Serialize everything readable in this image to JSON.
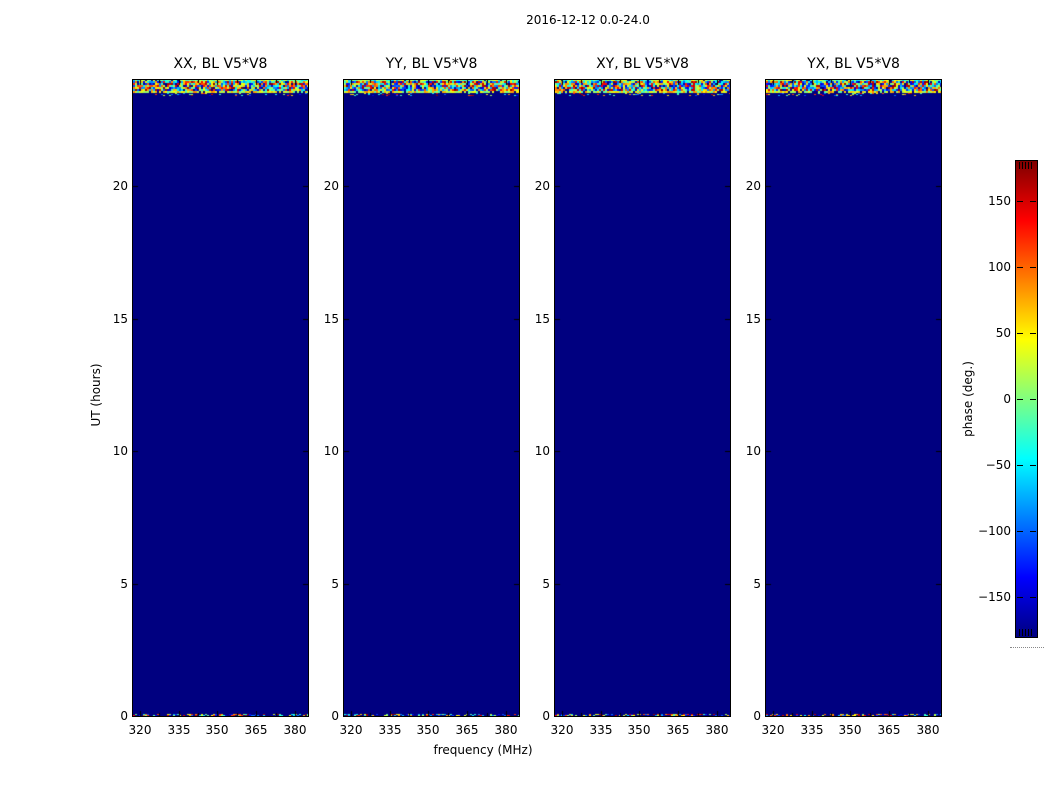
{
  "figure": {
    "title": "2016-12-12 0.0-24.0"
  },
  "panels": [
    {
      "title": "XX, BL V5*V8"
    },
    {
      "title": "YY, BL V5*V8"
    },
    {
      "title": "XY, BL V5*V8"
    },
    {
      "title": "YX, BL V5*V8"
    }
  ],
  "axes": {
    "xlabel": "frequency (MHz)",
    "ylabel": "UT (hours)",
    "x_tick_labels": [
      "320",
      "335",
      "350",
      "365",
      "380"
    ],
    "y_tick_labels": [
      "0",
      "5",
      "10",
      "15",
      "20"
    ]
  },
  "colorbar": {
    "label": "phase (deg.)",
    "tick_labels": [
      "150",
      "100",
      "50",
      "0",
      "−50",
      "−100",
      "−150"
    ]
  },
  "colors": {
    "background": "#ffffff",
    "panel_fill": "#000080",
    "spine": "#000000",
    "colormap_jet_stops": [
      "#800000",
      "#ff0000",
      "#ff8000",
      "#ffff00",
      "#80ff80",
      "#00ffff",
      "#0080ff",
      "#0000ff",
      "#000080"
    ]
  },
  "chart_data": {
    "type": "heatmap",
    "title": "2016-12-12 0.0-24.0",
    "subplots": [
      {
        "title": "XX, BL V5*V8"
      },
      {
        "title": "YY, BL V5*V8"
      },
      {
        "title": "XY, BL V5*V8"
      },
      {
        "title": "YX, BL V5*V8"
      }
    ],
    "xlabel": "frequency (MHz)",
    "ylabel": "UT (hours)",
    "x_ticks": [
      320,
      335,
      350,
      365,
      380
    ],
    "y_ticks": [
      0,
      5,
      10,
      15,
      20
    ],
    "xlim": [
      318,
      385
    ],
    "ylim": [
      0,
      24
    ],
    "colorbar": {
      "label": "phase (deg.)",
      "ticks": [
        150,
        100,
        50,
        0,
        -50,
        -100,
        -150
      ],
      "vmin": -180,
      "vmax": 180,
      "colormap": "jet"
    },
    "content_summary": "All four polarization panels are nearly uniform dark blue (phase ~ -180 deg) across 0-24 UT hours; a band of random multicolored phase noise spans all frequencies at the very top (~23.4-24.0 h) and a thin speckled noise row lies along the bottom edge (0 h)."
  }
}
